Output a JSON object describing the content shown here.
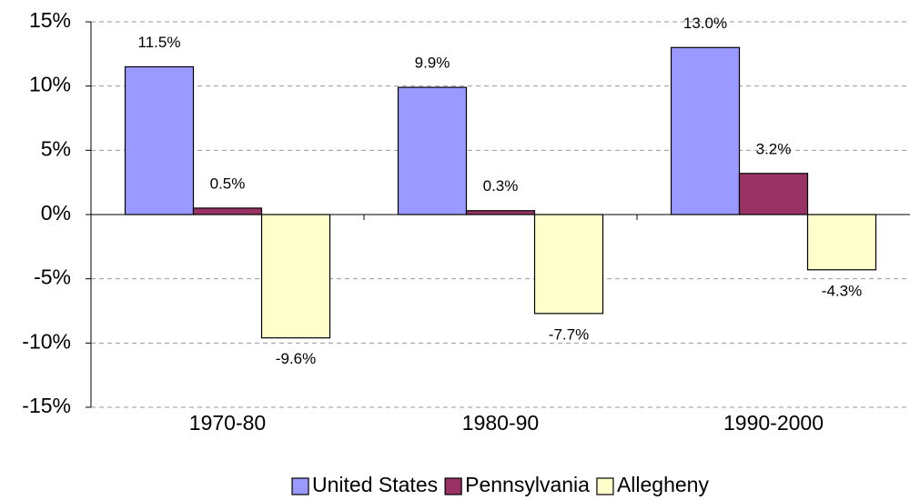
{
  "chart_data": {
    "type": "bar",
    "categories": [
      "1970-80",
      "1980-90",
      "1990-2000"
    ],
    "series": [
      {
        "name": "United States",
        "color": "#9999ff",
        "values": [
          11.5,
          9.9,
          13.0
        ],
        "value_labels": [
          "11.5%",
          "9.9%",
          "13.0%"
        ]
      },
      {
        "name": "Pennsylvania",
        "color": "#993366",
        "values": [
          0.5,
          0.3,
          3.2
        ],
        "value_labels": [
          "0.5%",
          "0.3%",
          "3.2%"
        ]
      },
      {
        "name": "Allegheny",
        "color": "#ffffcc",
        "values": [
          -9.6,
          -7.7,
          -4.3
        ],
        "value_labels": [
          "-9.6%",
          "-7.7%",
          "-4.3%"
        ]
      }
    ],
    "ylim": [
      -15,
      15
    ],
    "yticks": [
      {
        "value": -15,
        "label": "-15%"
      },
      {
        "value": -10,
        "label": "-10%"
      },
      {
        "value": -5,
        "label": "-5%"
      },
      {
        "value": 0,
        "label": "0%"
      },
      {
        "value": 5,
        "label": "5%"
      },
      {
        "value": 10,
        "label": "10%"
      },
      {
        "value": 15,
        "label": "15%"
      }
    ],
    "grid": true,
    "legend": "bottom"
  }
}
